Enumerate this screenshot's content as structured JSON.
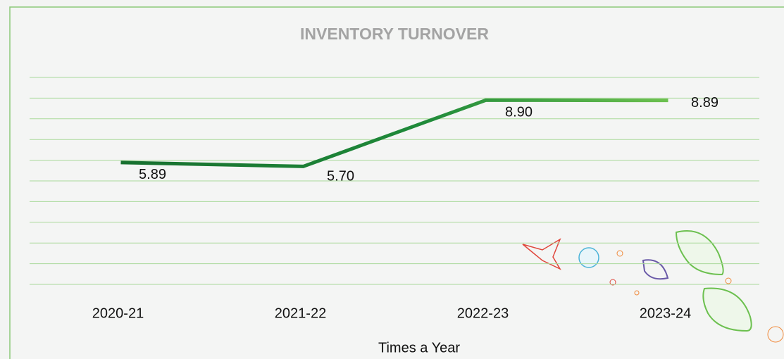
{
  "chart_data": {
    "type": "line",
    "title": "INVENTORY TURNOVER",
    "categories": [
      "2020-21",
      "2021-22",
      "2022-23",
      "2023-24"
    ],
    "series": [
      {
        "name": "Times a Year",
        "color": "#1b7d36",
        "values": [
          5.89,
          5.7,
          8.9,
          8.89
        ],
        "value_labels": [
          "5.89",
          "5.70",
          "8.90",
          "8.89"
        ]
      }
    ],
    "ylim": [
      0,
      10
    ],
    "yticks": [
      0,
      1,
      2,
      3,
      4,
      5,
      6,
      7,
      8,
      9,
      10
    ],
    "grid": true,
    "legend": "bottom"
  }
}
